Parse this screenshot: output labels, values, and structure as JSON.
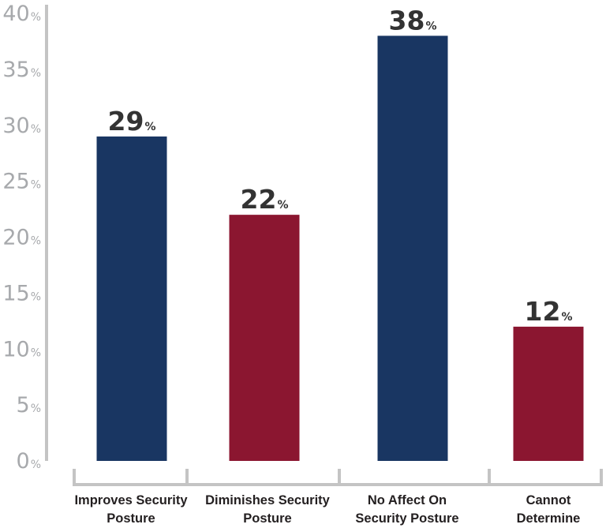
{
  "chart_data": {
    "type": "bar",
    "categories": [
      [
        "Improves Security",
        "Posture"
      ],
      [
        "Diminishes Security",
        "Posture"
      ],
      [
        "No Affect On",
        "Security Posture"
      ],
      [
        "Cannot",
        "Determine"
      ]
    ],
    "values": [
      29,
      22,
      38,
      12
    ],
    "value_suffix": "%",
    "bar_colors": [
      "#193662",
      "#8b1630",
      "#193662",
      "#8b1630"
    ],
    "yticks": [
      0,
      5,
      10,
      15,
      20,
      25,
      30,
      35,
      40
    ],
    "ylim": [
      0,
      40
    ],
    "title": "",
    "xlabel": "",
    "ylabel": "",
    "grid": false,
    "legend": "none",
    "axis_color": "#c4c4c4"
  }
}
